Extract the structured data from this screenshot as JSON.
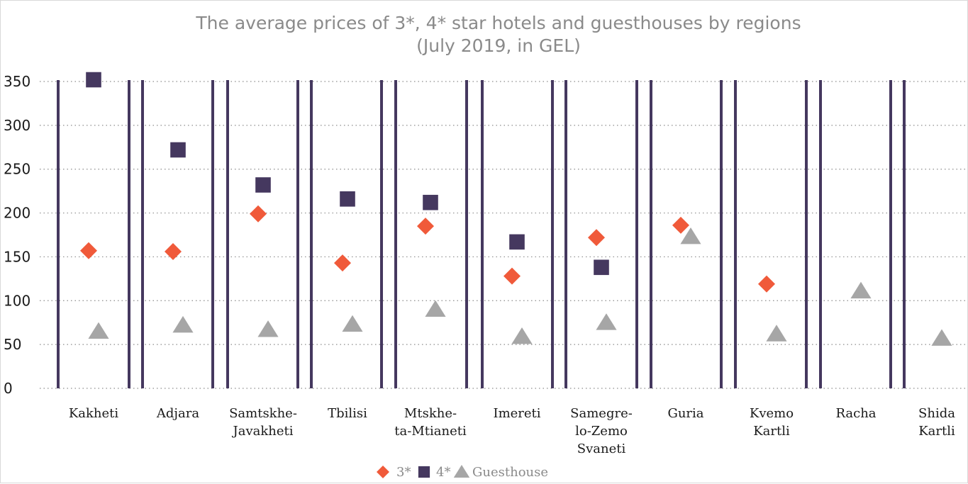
{
  "chart_data": {
    "type": "scatter",
    "title_lines": [
      "The average prices of 3*, 4* star hotels and guesthouses by regions",
      "(July 2019, in GEL)"
    ],
    "categories": [
      [
        "Kakheti"
      ],
      [
        "Adjara"
      ],
      [
        "Samtskhe-",
        "Javakheti"
      ],
      [
        "Tbilisi"
      ],
      [
        "Mtskhe-",
        "ta-Mtianeti"
      ],
      [
        "Imereti"
      ],
      [
        "Samegre-",
        "lo-Zemo",
        "Svaneti"
      ],
      [
        "Guria"
      ],
      [
        "Kvemo",
        "Kartli"
      ],
      [
        "Racha"
      ],
      [
        "Shida",
        "Kartli"
      ]
    ],
    "series": [
      {
        "name": "3*",
        "color": "#f05a3a",
        "marker": "diamond",
        "values": [
          157,
          156,
          199,
          143,
          185,
          128,
          172,
          186,
          119,
          null,
          null
        ]
      },
      {
        "name": "4*",
        "color": "#45385f",
        "marker": "square",
        "values": [
          352,
          272,
          232,
          216,
          212,
          167,
          138,
          null,
          null,
          null,
          null
        ]
      },
      {
        "name": "Guesthouse",
        "color": "#a6a6a6",
        "marker": "triangle",
        "values": [
          65,
          72,
          67,
          73,
          90,
          59,
          75,
          173,
          62,
          111,
          57
        ]
      }
    ],
    "ylim": [
      0,
      350
    ],
    "yticks": [
      "0",
      "50",
      "100",
      "150",
      "200",
      "250",
      "300",
      "350"
    ],
    "grid": "horizontal-dotted",
    "separator_color": "#45385f",
    "legend_position": "bottom"
  }
}
